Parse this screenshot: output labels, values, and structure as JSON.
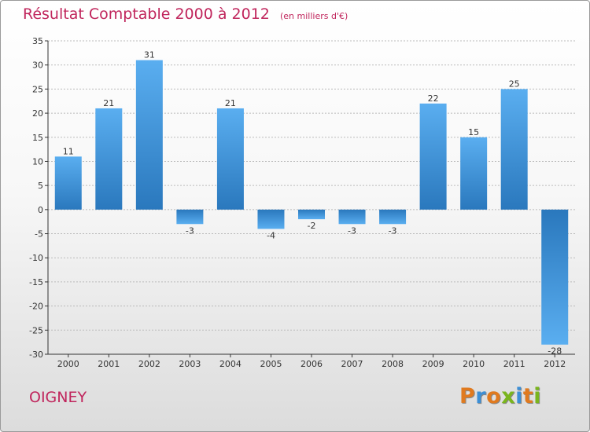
{
  "header": {
    "title": "Résultat Comptable 2000 à 2012",
    "subtitle": "(en milliers d'€)"
  },
  "footer": {
    "commune": "OIGNEY",
    "brand": "Proxiti",
    "brand_letter_colors": [
      "#e07a1f",
      "#3c8fd6",
      "#e07a1f",
      "#7ab51d",
      "#3c8fd6",
      "#e07a1f",
      "#7ab51d"
    ]
  },
  "colors": {
    "bar_top": "#5aaef0",
    "bar_bottom": "#2a78bd",
    "title": "#c0255c",
    "grid": "#bbbbbb",
    "axis": "#333333"
  },
  "chart_data": {
    "type": "bar",
    "title": "Résultat Comptable 2000 à 2012",
    "subtitle": "(en milliers d'€)",
    "categories": [
      "2000",
      "2001",
      "2002",
      "2003",
      "2004",
      "2005",
      "2006",
      "2007",
      "2008",
      "2009",
      "2010",
      "2011",
      "2012"
    ],
    "values": [
      11,
      21,
      31,
      -3,
      21,
      -4,
      -2,
      -3,
      -3,
      22,
      15,
      25,
      -28
    ],
    "ylim": [
      -30,
      35
    ],
    "yticks": [
      -30,
      -25,
      -20,
      -15,
      -10,
      -5,
      0,
      5,
      10,
      15,
      20,
      25,
      30,
      35
    ],
    "xlabel": "",
    "ylabel": "",
    "grid": true
  }
}
